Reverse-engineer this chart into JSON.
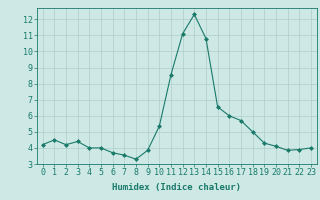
{
  "x": [
    0,
    1,
    2,
    3,
    4,
    5,
    6,
    7,
    8,
    9,
    10,
    11,
    12,
    13,
    14,
    15,
    16,
    17,
    18,
    19,
    20,
    21,
    22,
    23
  ],
  "y": [
    4.2,
    4.5,
    4.2,
    4.4,
    4.0,
    4.0,
    3.7,
    3.55,
    3.3,
    3.85,
    5.35,
    8.55,
    11.1,
    12.3,
    10.8,
    6.55,
    6.0,
    5.7,
    5.0,
    4.3,
    4.1,
    3.85,
    3.9,
    4.0
  ],
  "line_color": "#1a7a6a",
  "marker": "D",
  "marker_size": 2.0,
  "bg_color": "#cde8e5",
  "grid_color": "#b0ceca",
  "xlabel": "Humidex (Indice chaleur)",
  "ylim": [
    3,
    12.7
  ],
  "xlim": [
    -0.5,
    23.5
  ],
  "yticks": [
    3,
    4,
    5,
    6,
    7,
    8,
    9,
    10,
    11,
    12
  ],
  "xticks": [
    0,
    1,
    2,
    3,
    4,
    5,
    6,
    7,
    8,
    9,
    10,
    11,
    12,
    13,
    14,
    15,
    16,
    17,
    18,
    19,
    20,
    21,
    22,
    23
  ],
  "axis_color": "#1a7a6a",
  "tick_color": "#1a7a6a",
  "label_color": "#1a7a6a",
  "font_size_label": 6.5,
  "font_size_tick": 6.0
}
